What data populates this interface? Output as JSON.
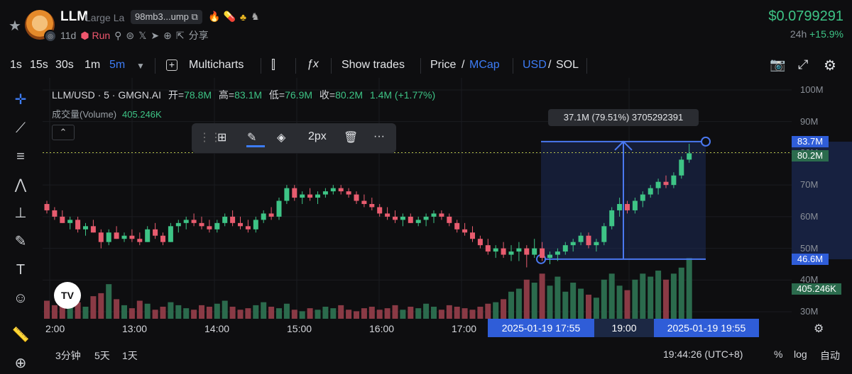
{
  "header": {
    "symbol": "LLM",
    "symbol_name": "Large La",
    "address": "98mb3...ump",
    "age": "11d",
    "run_label": "Run",
    "share_label": "分享",
    "price": "$0.0799291",
    "change_period": "24h",
    "change_value": "+15.9%"
  },
  "toolbar": {
    "intervals": [
      "1s",
      "15s",
      "30s",
      "1m",
      "5m"
    ],
    "active_interval": "5m",
    "multicharts": "Multicharts",
    "show_trades": "Show trades",
    "price": "Price",
    "slash1": "/",
    "mcap": "MCap",
    "usd": "USD",
    "slash2": "/",
    "sol": "SOL"
  },
  "legend": {
    "title": "LLM/USD · 5 · GMGN.AI",
    "open_label": "开=",
    "open": "78.8M",
    "high_label": "高=",
    "high": "83.1M",
    "low_label": "低=",
    "low": "76.9M",
    "close_label": "收=",
    "close": "80.2M",
    "change": "1.4M (+1.77%)",
    "volume_label": "成交量(Volume)",
    "volume_value": "405.246K"
  },
  "drawing_toolbar": {
    "width_label": "2px"
  },
  "measure_label": "37.1M (79.51%) 3705292391",
  "price_axis": {
    "labels": [
      "100M",
      "90M",
      "80M",
      "70M",
      "60M",
      "50M",
      "40M",
      "30M"
    ],
    "tag_top": "83.7M",
    "tag_current": "80.2M",
    "tag_bottom": "46.6M",
    "tag_volume": "405.246K"
  },
  "time_axis": {
    "labels": [
      "2:00",
      "13:00",
      "14:00",
      "15:00",
      "16:00",
      "17:00",
      "19:00"
    ],
    "range_start": "2025-01-19   17:55",
    "range_end": "2025-01-19   19:55"
  },
  "bottom_bar": {
    "ranges": [
      "3分钟",
      "5天",
      "1天"
    ],
    "clock": "19:44:26 (UTC+8)",
    "percent": "%",
    "log": "log",
    "auto": "自动"
  },
  "colors": {
    "up": "#3ec486",
    "down": "#e85c6f",
    "accent": "#3d7cf5",
    "measure": "#4a78f0"
  },
  "chart_data": {
    "type": "candlestick",
    "ylim": [
      26,
      102
    ],
    "ohlc_millions": [
      [
        64,
        65,
        61,
        62
      ],
      [
        62,
        63,
        59,
        60
      ],
      [
        60,
        62,
        58,
        58
      ],
      [
        58,
        60,
        56,
        59
      ],
      [
        59,
        60,
        55,
        56
      ],
      [
        56,
        58,
        54,
        57
      ],
      [
        57,
        59,
        55,
        55
      ],
      [
        55,
        56,
        50,
        52
      ],
      [
        52,
        56,
        51,
        55
      ],
      [
        55,
        57,
        53,
        53
      ],
      [
        53,
        55,
        52,
        54
      ],
      [
        54,
        56,
        52,
        53
      ],
      [
        53,
        55,
        51,
        52
      ],
      [
        52,
        57,
        52,
        56
      ],
      [
        56,
        58,
        53,
        54
      ],
      [
        54,
        55,
        51,
        52
      ],
      [
        52,
        58,
        52,
        57
      ],
      [
        57,
        59,
        55,
        58
      ],
      [
        58,
        60,
        56,
        59
      ],
      [
        59,
        61,
        57,
        58
      ],
      [
        58,
        60,
        56,
        57
      ],
      [
        57,
        59,
        55,
        56
      ],
      [
        56,
        59,
        55,
        58
      ],
      [
        58,
        61,
        57,
        60
      ],
      [
        60,
        62,
        57,
        58
      ],
      [
        58,
        60,
        56,
        57
      ],
      [
        57,
        59,
        55,
        56
      ],
      [
        56,
        60,
        55,
        59
      ],
      [
        59,
        62,
        58,
        61
      ],
      [
        61,
        63,
        59,
        60
      ],
      [
        60,
        66,
        59,
        65
      ],
      [
        65,
        70,
        64,
        69
      ],
      [
        69,
        70,
        65,
        66
      ],
      [
        66,
        68,
        64,
        67
      ],
      [
        67,
        69,
        65,
        66
      ],
      [
        66,
        68,
        64,
        67
      ],
      [
        67,
        69,
        66,
        68
      ],
      [
        68,
        70,
        67,
        69
      ],
      [
        69,
        70,
        67,
        68
      ],
      [
        68,
        69,
        66,
        67
      ],
      [
        67,
        68,
        64,
        65
      ],
      [
        65,
        67,
        63,
        64
      ],
      [
        64,
        66,
        62,
        63
      ],
      [
        63,
        64,
        60,
        61
      ],
      [
        61,
        63,
        59,
        60
      ],
      [
        60,
        62,
        58,
        59
      ],
      [
        59,
        61,
        57,
        60
      ],
      [
        60,
        61,
        58,
        58
      ],
      [
        58,
        60,
        57,
        59
      ],
      [
        59,
        61,
        57,
        60
      ],
      [
        60,
        62,
        58,
        61
      ],
      [
        61,
        62,
        59,
        60
      ],
      [
        60,
        61,
        57,
        58
      ],
      [
        58,
        59,
        55,
        56
      ],
      [
        56,
        58,
        54,
        55
      ],
      [
        55,
        57,
        52,
        53
      ],
      [
        53,
        54,
        50,
        51
      ],
      [
        51,
        53,
        48,
        49
      ],
      [
        49,
        51,
        47,
        50
      ],
      [
        50,
        52,
        47,
        48
      ],
      [
        48,
        51,
        46,
        49
      ],
      [
        49,
        52,
        46,
        50
      ],
      [
        50,
        51,
        44,
        48
      ],
      [
        48,
        53,
        47,
        50
      ],
      [
        50,
        52,
        46,
        47
      ],
      [
        47,
        49,
        45,
        48
      ],
      [
        48,
        50,
        46,
        49
      ],
      [
        49,
        52,
        48,
        51
      ],
      [
        51,
        53,
        49,
        52
      ],
      [
        52,
        55,
        51,
        54
      ],
      [
        54,
        55,
        50,
        51
      ],
      [
        51,
        53,
        49,
        52
      ],
      [
        52,
        58,
        51,
        57
      ],
      [
        57,
        63,
        56,
        62
      ],
      [
        62,
        66,
        60,
        64
      ],
      [
        64,
        65,
        61,
        62
      ],
      [
        62,
        66,
        61,
        65
      ],
      [
        65,
        68,
        63,
        67
      ],
      [
        67,
        70,
        66,
        69
      ],
      [
        69,
        72,
        67,
        71
      ],
      [
        71,
        73,
        69,
        70
      ],
      [
        70,
        74,
        69,
        73
      ],
      [
        73,
        79,
        72,
        78
      ],
      [
        78,
        83,
        77,
        80
      ]
    ],
    "volume_thousands": [
      120,
      90,
      160,
      140,
      110,
      80,
      150,
      170,
      230,
      130,
      90,
      70,
      120,
      100,
      60,
      80,
      110,
      90,
      70,
      60,
      90,
      80,
      100,
      120,
      80,
      60,
      70,
      90,
      110,
      80,
      70,
      100,
      60,
      50,
      70,
      60,
      80,
      70,
      90,
      60,
      50,
      70,
      80,
      60,
      70,
      90,
      60,
      80,
      70,
      100,
      80,
      60,
      90,
      80,
      70,
      60,
      80,
      100,
      110,
      130,
      180,
      200,
      260,
      240,
      300,
      220,
      280,
      180,
      240,
      200,
      160,
      140,
      260,
      300,
      220,
      190,
      260,
      300,
      280,
      320,
      260,
      300,
      340,
      405
    ]
  }
}
